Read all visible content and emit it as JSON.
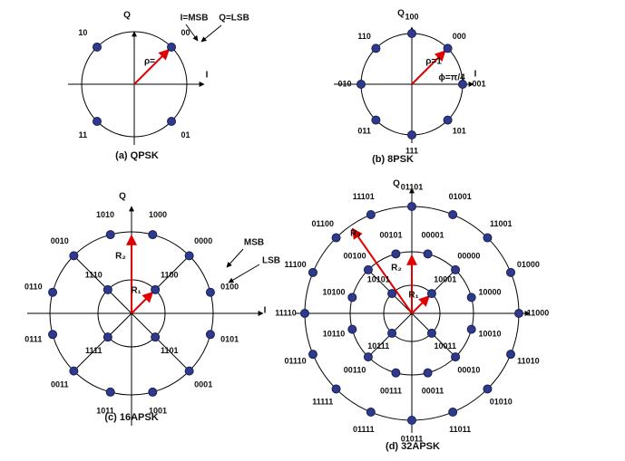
{
  "panels": [
    {
      "caption": "(a) QPSK",
      "annotations": [
        "Q",
        "I",
        "I=MSB",
        "Q=LSB",
        "ρ="
      ],
      "points": [
        "00",
        "10",
        "11",
        "01"
      ]
    },
    {
      "caption": "(b) 8PSK",
      "annotations": [
        "Q",
        "I",
        "ρ=1",
        "ϕ=π/4"
      ],
      "points": [
        "001",
        "000",
        "100",
        "110",
        "010",
        "011",
        "111",
        "101"
      ]
    },
    {
      "caption": "(c) 16APSK",
      "annotations": [
        "Q",
        "I",
        "R₂",
        "R₁",
        "MSB",
        "LSB"
      ],
      "points": [
        "1100",
        "1110",
        "1111",
        "1101",
        "0100",
        "0000",
        "1000",
        "1010",
        "0010",
        "0110",
        "0111",
        "0011",
        "1011",
        "1001",
        "0001",
        "0101"
      ]
    },
    {
      "caption": "(d) 32APSK",
      "annotations": [
        "Q",
        "R₃",
        "R₂",
        "R₁"
      ],
      "points": [
        "10001",
        "10101",
        "10111",
        "10011",
        "10000",
        "00000",
        "00001",
        "00101",
        "00100",
        "10100",
        "10110",
        "00110",
        "00111",
        "00011",
        "00010",
        "10010",
        "11000",
        "01000",
        "11001",
        "01001",
        "01101",
        "11101",
        "01100",
        "11100",
        "11110",
        "01110",
        "11111",
        "01111",
        "01011",
        "11011",
        "01010",
        "11010"
      ]
    }
  ]
}
